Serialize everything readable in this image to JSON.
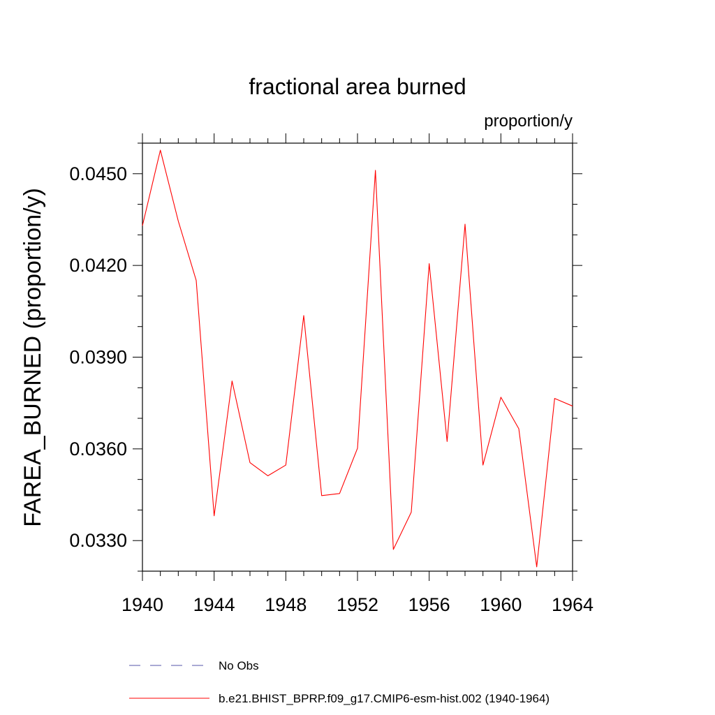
{
  "chart_data": {
    "type": "line",
    "title": "fractional area burned",
    "units_label": "proportion/y",
    "ylabel": "FAREA_BURNED  (proportion/y)",
    "xlabel": "",
    "xlim": [
      1940,
      1964
    ],
    "ylim": [
      0.032,
      0.046
    ],
    "x_ticks": [
      1940,
      1944,
      1948,
      1952,
      1956,
      1960,
      1964
    ],
    "y_ticks": [
      {
        "value": 0.033,
        "label": "0.0330"
      },
      {
        "value": 0.036,
        "label": "0.0360"
      },
      {
        "value": 0.039,
        "label": "0.0390"
      },
      {
        "value": 0.042,
        "label": "0.0420"
      },
      {
        "value": 0.045,
        "label": "0.0450"
      }
    ],
    "legend_position": "bottom",
    "series": [
      {
        "name": "No Obs",
        "color": "#5555aa",
        "dash": true,
        "x": [],
        "values": []
      },
      {
        "name": "b.e21.BHIST_BPRP.f09_g17.CMIP6-esm-hist.002 (1940-1964)",
        "color": "#ff0000",
        "dash": false,
        "x": [
          1940,
          1941,
          1942,
          1943,
          1944,
          1945,
          1946,
          1947,
          1948,
          1949,
          1950,
          1951,
          1952,
          1953,
          1954,
          1955,
          1956,
          1957,
          1958,
          1959,
          1960,
          1961,
          1962,
          1963,
          1964
        ],
        "values": [
          0.0433,
          0.04577,
          0.04345,
          0.04151,
          0.03381,
          0.03822,
          0.03555,
          0.03512,
          0.03547,
          0.04036,
          0.03447,
          0.03454,
          0.03602,
          0.04511,
          0.03271,
          0.03393,
          0.04206,
          0.03624,
          0.04335,
          0.03547,
          0.03769,
          0.03666,
          0.03214,
          0.03765,
          0.0374
        ]
      }
    ]
  }
}
